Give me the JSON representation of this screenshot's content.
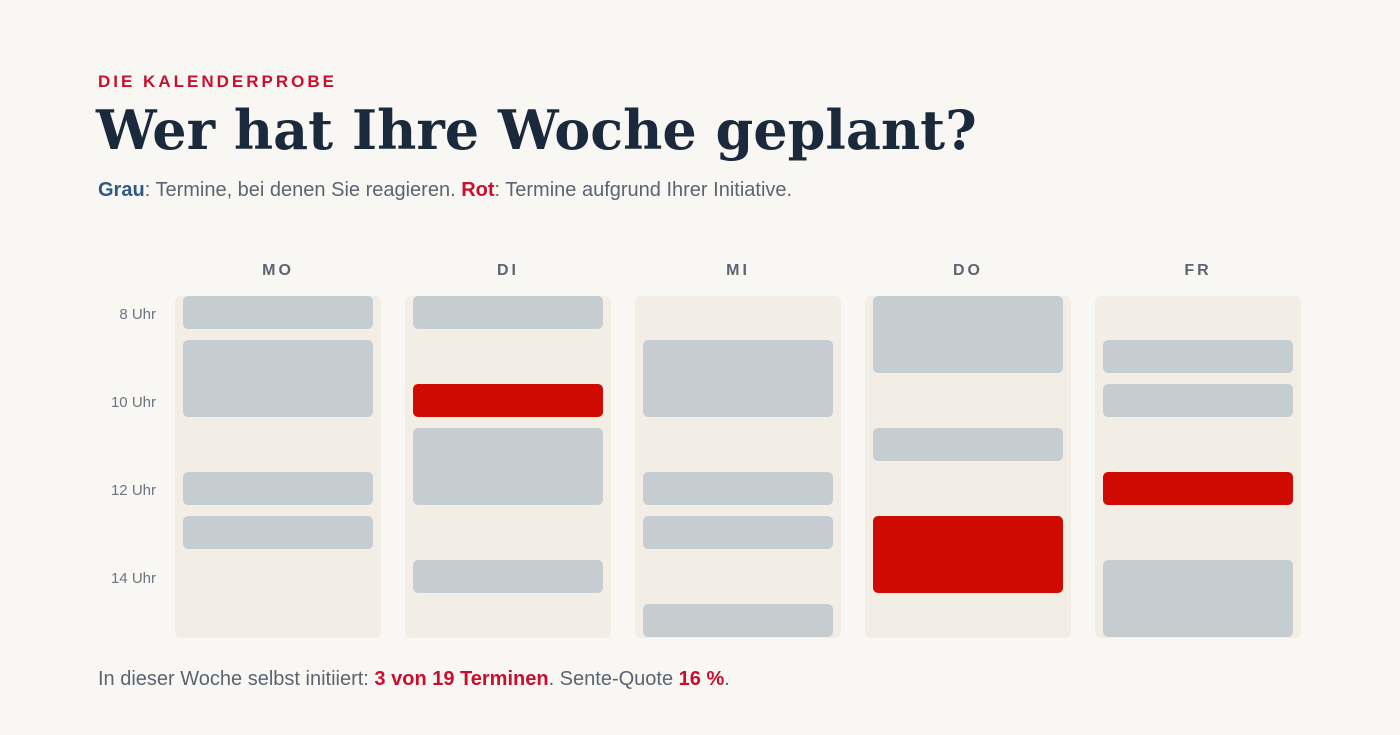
{
  "header": {
    "eyebrow": "DIE KALENDERPROBE",
    "title": "Wer hat Ihre Woche geplant?",
    "subtitle": {
      "grau_label": "Grau",
      "grau_text": ": Termine, bei denen Sie reagieren. ",
      "rot_label": "Rot",
      "rot_text": ": Termine aufgrund Ihrer Initiative."
    }
  },
  "calendar": {
    "days": [
      "MO",
      "DI",
      "MI",
      "DO",
      "FR"
    ],
    "time_labels": [
      "8 Uhr",
      "10 Uhr",
      "12 Uhr",
      "14 Uhr"
    ],
    "legend_colors": {
      "grau": "#c6cdd1",
      "rot": "#cf0a00"
    },
    "events": {
      "MO": [
        {
          "start": 8.0,
          "end": 8.75,
          "type": "grau"
        },
        {
          "start": 9.0,
          "end": 10.75,
          "type": "grau"
        },
        {
          "start": 12.0,
          "end": 12.75,
          "type": "grau"
        },
        {
          "start": 13.0,
          "end": 13.75,
          "type": "grau"
        }
      ],
      "DI": [
        {
          "start": 8.0,
          "end": 8.75,
          "type": "grau"
        },
        {
          "start": 10.0,
          "end": 10.75,
          "type": "rot"
        },
        {
          "start": 11.0,
          "end": 12.75,
          "type": "grau"
        },
        {
          "start": 14.0,
          "end": 14.75,
          "type": "grau"
        }
      ],
      "MI": [
        {
          "start": 9.0,
          "end": 10.75,
          "type": "grau"
        },
        {
          "start": 12.0,
          "end": 12.75,
          "type": "grau"
        },
        {
          "start": 13.0,
          "end": 13.75,
          "type": "grau"
        },
        {
          "start": 15.0,
          "end": 15.75,
          "type": "grau"
        }
      ],
      "DO": [
        {
          "start": 8.0,
          "end": 9.75,
          "type": "grau"
        },
        {
          "start": 11.0,
          "end": 11.75,
          "type": "grau"
        },
        {
          "start": 13.0,
          "end": 14.75,
          "type": "rot"
        }
      ],
      "FR": [
        {
          "start": 9.0,
          "end": 9.75,
          "type": "grau"
        },
        {
          "start": 10.0,
          "end": 10.75,
          "type": "grau"
        },
        {
          "start": 12.0,
          "end": 12.75,
          "type": "rot"
        },
        {
          "start": 14.0,
          "end": 15.75,
          "type": "grau"
        }
      ]
    }
  },
  "footer": {
    "prefix": "In dieser Woche selbst initiiert: ",
    "count_text": "3 von 19 Terminen",
    "middle": ". Sente-Quote ",
    "quote": "16 %",
    "suffix": "."
  }
}
